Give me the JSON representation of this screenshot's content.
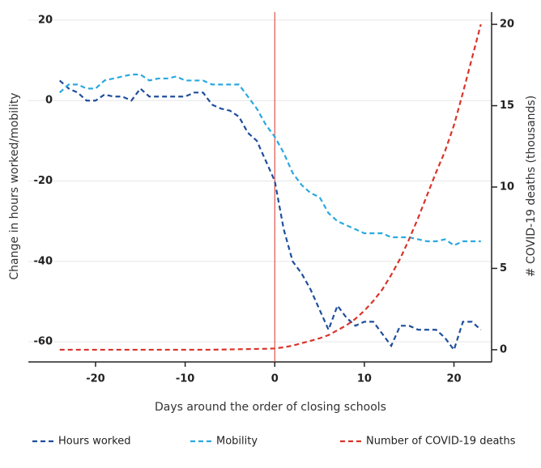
{
  "chart_data": {
    "type": "line",
    "x_label": "Days around the order of closing schools",
    "y_label": "Change in hours worked/mobility",
    "y2_label": "# COVID-19 deaths (thousands)",
    "x": [
      -24,
      -23,
      -22,
      -21,
      -20,
      -19,
      -18,
      -17,
      -16,
      -15,
      -14,
      -13,
      -12,
      -11,
      -10,
      -9,
      -8,
      -7,
      -6,
      -5,
      -4,
      -3,
      -2,
      -1,
      0,
      1,
      2,
      3,
      4,
      5,
      6,
      7,
      8,
      9,
      10,
      11,
      12,
      13,
      14,
      15,
      16,
      17,
      18,
      19,
      20,
      21,
      22,
      23
    ],
    "xlim": [
      -27.5,
      24.2
    ],
    "xticks": [
      -20,
      -10,
      0,
      10,
      20
    ],
    "ylim": [
      -65,
      22
    ],
    "yticks": [
      -60,
      -40,
      -20,
      0,
      20
    ],
    "y2lim": [
      -0.75,
      20.75
    ],
    "y2ticks": [
      0,
      5,
      10,
      15,
      20
    ],
    "grid": true,
    "vline_x": 0,
    "vline_color": "#d9342b",
    "legend": "bottom",
    "series": [
      {
        "name": "Hours worked",
        "color": "#1f4e9c",
        "values": [
          5,
          3,
          2,
          0,
          0,
          1.5,
          1,
          1,
          0,
          3,
          1,
          1,
          1,
          1,
          1,
          2,
          2,
          -1,
          -2,
          -2.5,
          -4,
          -8,
          -10,
          -15,
          -20,
          -32,
          -40,
          -43,
          -47,
          -52,
          -57,
          -51,
          -54,
          -56,
          -55,
          -55,
          -58,
          -61,
          -56,
          -56,
          -57,
          -57,
          -57,
          -59,
          -62,
          -55,
          -55,
          -57
        ]
      },
      {
        "name": "Mobility",
        "color": "#2aa8e0",
        "values": [
          2,
          4,
          4,
          3,
          3,
          5,
          5.5,
          6,
          6.5,
          6.5,
          5,
          5.5,
          5.5,
          6,
          5,
          5,
          5,
          4,
          4,
          4,
          4,
          1,
          -2,
          -6,
          -9,
          -13,
          -18,
          -21,
          -23,
          -24,
          -28,
          -30,
          -31,
          -32,
          -33,
          -33,
          -33,
          -34,
          -34,
          -34,
          -34.5,
          -35,
          -35,
          -34.5,
          -36,
          -35,
          -35,
          -35
        ]
      },
      {
        "name": "Number of COVID-19 deaths",
        "color": "#d9342b",
        "axis": "y2",
        "values": [
          0,
          0,
          0,
          0,
          0,
          0,
          0,
          0,
          0,
          0,
          0,
          0,
          0,
          0,
          0,
          0,
          0,
          0,
          0.01,
          0.02,
          0.03,
          0.04,
          0.05,
          0.06,
          0.08,
          0.15,
          0.25,
          0.4,
          0.55,
          0.7,
          0.9,
          1.2,
          1.5,
          1.9,
          2.4,
          3.0,
          3.7,
          4.6,
          5.6,
          6.8,
          8.1,
          9.5,
          10.9,
          12.2,
          13.8,
          15.8,
          17.9,
          20
        ]
      }
    ]
  }
}
